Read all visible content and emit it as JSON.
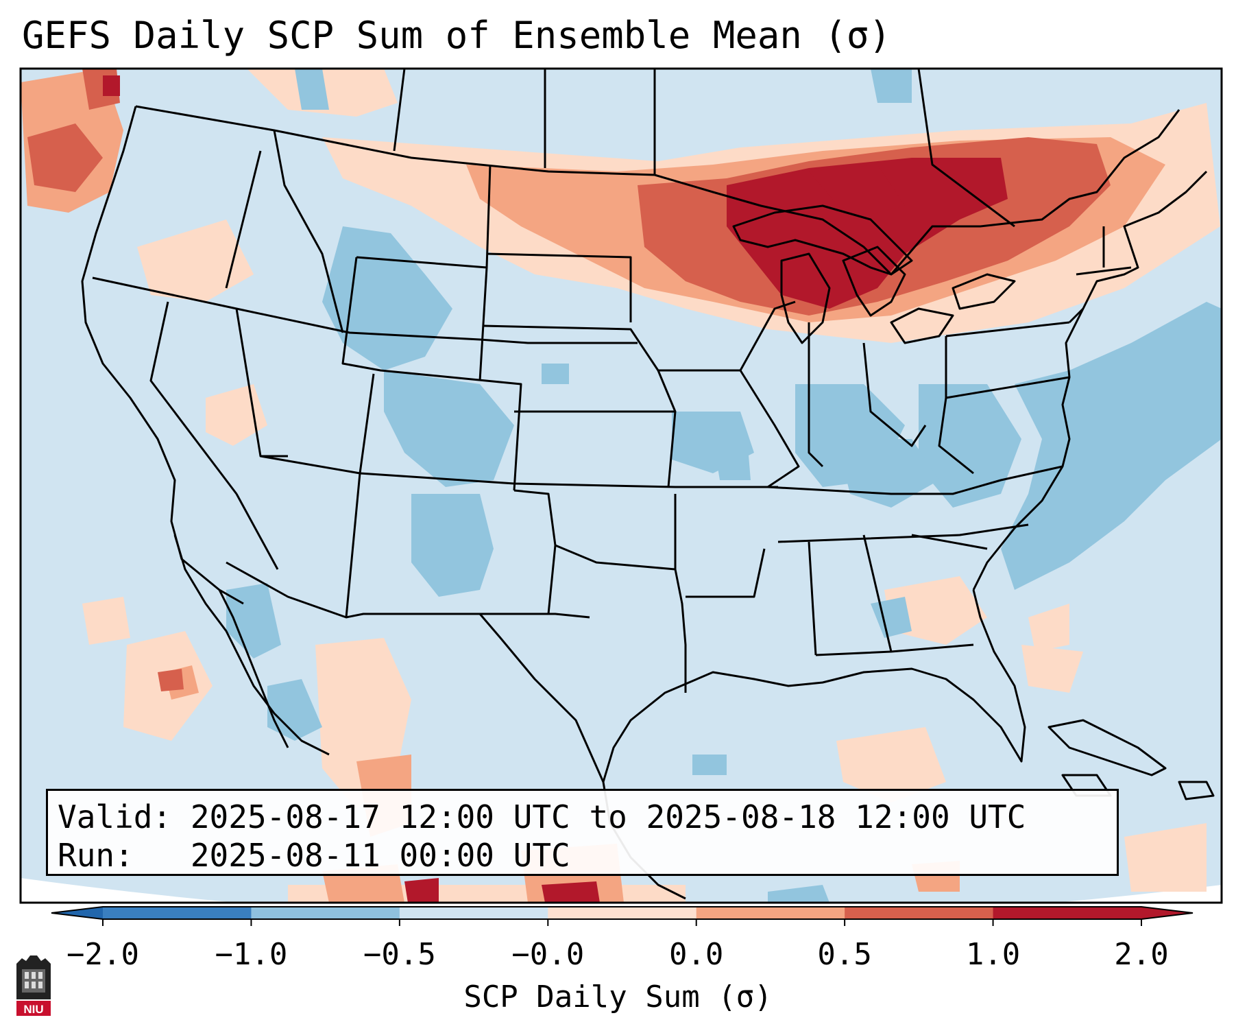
{
  "title": "GEFS Daily SCP Sum of Ensemble Mean (σ)",
  "info": {
    "valid": "Valid: 2025-08-17 12:00 UTC to 2025-08-18 12:00 UTC",
    "run": "Run:   2025-08-11 00:00 UTC"
  },
  "colorbar": {
    "label": "SCP Daily Sum (σ)",
    "ticks": [
      "−2.0",
      "−1.0",
      "−0.5",
      "−0.0",
      "0.0",
      "0.5",
      "1.0",
      "2.0"
    ],
    "colors": [
      "#3a7fbf",
      "#8fc1de",
      "#d0e4f1",
      "#fde0d0",
      "#f4a582",
      "#d6604d",
      "#b2182b"
    ],
    "extend_low": "#2166ac",
    "extend_high": "#b2182b"
  },
  "logo": {
    "text": "NIU"
  },
  "map": {
    "background": "#d0e4f1",
    "ocean_edge": "#ffffff"
  }
}
